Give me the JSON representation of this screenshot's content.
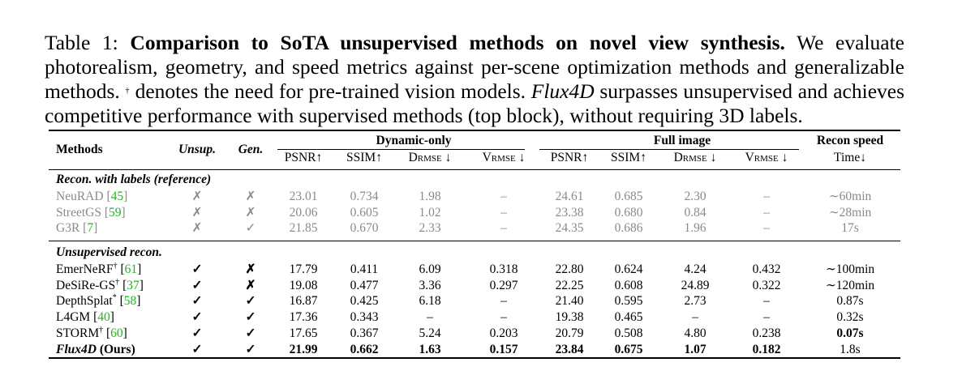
{
  "caption": {
    "prefix": "Table 1: ",
    "title": "Comparison to SoTA unsupervised methods on novel view synthesis.",
    "text1": " We evaluate photorealism, geometry, and speed metrics against per-scene optimization methods and generalizable methods. ",
    "dagger": "†",
    "text2": " denotes the need for pre-trained vision models. ",
    "italic": "Flux4D",
    "text3": " surpasses unsupervised and achieves competitive performance with supervised methods (top block), without requiring 3D labels."
  },
  "header": {
    "methods": "Methods",
    "unsup": "Unsup.",
    "gen": "Gen.",
    "group_dynamic": "Dynamic-only",
    "group_full": "Full image",
    "group_speed": "Recon speed",
    "psnr": "PSNR↑",
    "ssim": "SSIM↑",
    "d_main": "D",
    "d_sub": "RMSE",
    "d_arrow": " ↓",
    "v_main": "V",
    "v_sub": "RMSE",
    "v_arrow": " ↓",
    "time": "Time↓"
  },
  "sections": [
    {
      "label": "Recon. with labels (reference)",
      "rows": [
        {
          "name": "NeuRAD",
          "sup": "",
          "cite": "45",
          "unsup": "✗",
          "gen": "✗",
          "cells": [
            "23.01",
            "0.734",
            "1.98",
            "–",
            "24.61",
            "0.685",
            "2.30",
            "–",
            "∼60min"
          ]
        },
        {
          "name": "StreetGS",
          "sup": "",
          "cite": "59",
          "unsup": "✗",
          "gen": "✗",
          "cells": [
            "20.06",
            "0.605",
            "1.02",
            "–",
            "23.38",
            "0.680",
            "0.84",
            "–",
            "∼28min"
          ]
        },
        {
          "name": "G3R",
          "sup": "",
          "cite": "7",
          "unsup": "✗",
          "gen": "✓",
          "cells": [
            "21.85",
            "0.670",
            "2.33",
            "–",
            "24.35",
            "0.686",
            "1.96",
            "–",
            "17s"
          ]
        }
      ]
    },
    {
      "label": "Unsupervised recon.",
      "rows": [
        {
          "name": "EmerNeRF",
          "sup": "†",
          "cite": "61",
          "unsup": "✓",
          "gen": "✗",
          "cells": [
            "17.79",
            "0.411",
            "6.09",
            "0.318",
            "22.80",
            "0.624",
            "4.24",
            "0.432",
            "∼100min"
          ]
        },
        {
          "name": "DeSiRe-GS",
          "sup": "†",
          "cite": "37",
          "unsup": "✓",
          "gen": "✗",
          "cells": [
            "19.08",
            "0.477",
            "3.36",
            "0.297",
            "22.25",
            "0.608",
            "24.89",
            "0.322",
            "∼120min"
          ]
        },
        {
          "name": "DepthSplat",
          "sup": "*",
          "cite": "58",
          "unsup": "✓",
          "gen": "✓",
          "cells": [
            "16.87",
            "0.425",
            "6.18",
            "–",
            "21.40",
            "0.595",
            "2.73",
            "–",
            "0.87s"
          ]
        },
        {
          "name": "L4GM",
          "sup": "",
          "cite": "40",
          "unsup": "✓",
          "gen": "✓",
          "cells": [
            "17.36",
            "0.343",
            "–",
            "–",
            "19.38",
            "0.465",
            "–",
            "–",
            "0.32s"
          ]
        },
        {
          "name": "STORM",
          "sup": "†",
          "cite": "60",
          "unsup": "✓",
          "gen": "✓",
          "cells": [
            "17.65",
            "0.367",
            "5.24",
            "0.203",
            "20.79",
            "0.508",
            "4.80",
            "0.238",
            "0.07s"
          ]
        },
        {
          "name": "Flux4D",
          "suffix": " (Ours)",
          "unsup": "✓",
          "gen": "✓",
          "cells": [
            "21.99",
            "0.662",
            "1.63",
            "0.157",
            "23.84",
            "0.675",
            "1.07",
            "0.182",
            "1.8s"
          ]
        }
      ]
    }
  ]
}
